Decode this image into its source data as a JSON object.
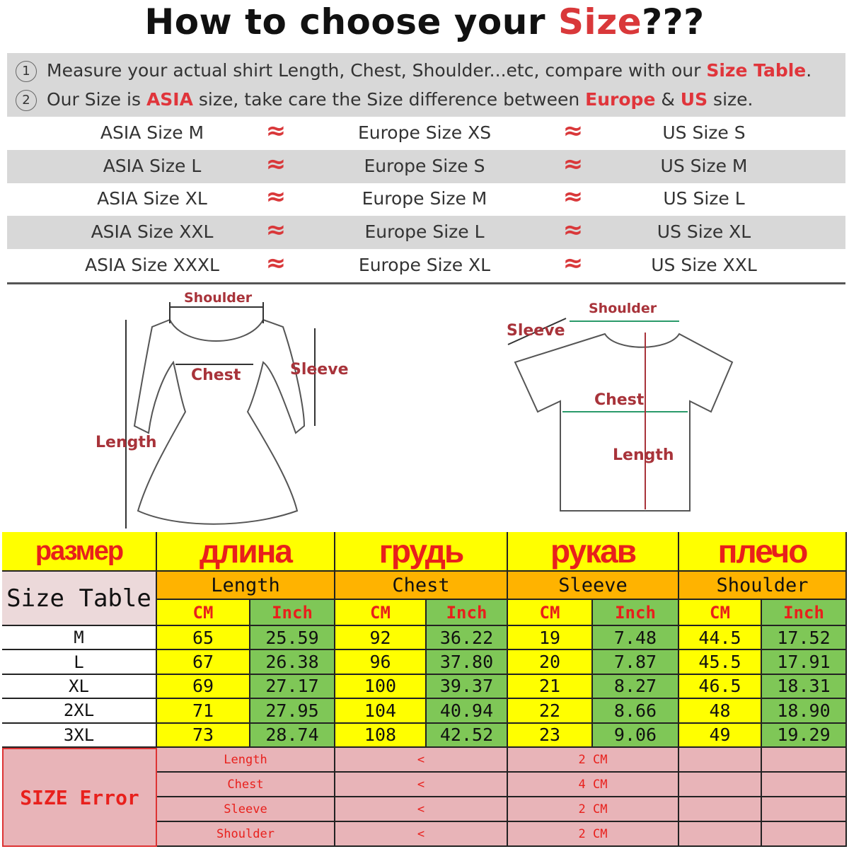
{
  "title": {
    "prefix": "How to choose your ",
    "highlight": "Size",
    "suffix": "???"
  },
  "notes": [
    {
      "num": "1",
      "parts": [
        [
          "Measure your actual shirt Length, Chest, Shoulder...etc, compare with our ",
          false
        ],
        [
          "Size Table",
          true
        ],
        [
          ".",
          false
        ]
      ]
    },
    {
      "num": "2",
      "parts": [
        [
          "Our Size is ",
          false
        ],
        [
          "ASIA",
          true
        ],
        [
          " size, take care the Size difference between ",
          false
        ],
        [
          "Europe",
          true
        ],
        [
          " & ",
          false
        ],
        [
          "US",
          true
        ],
        [
          " size.",
          false
        ]
      ]
    }
  ],
  "conversion": {
    "approx_symbol": "≈",
    "rows": [
      [
        "ASIA Size M",
        "Europe Size XS",
        "US Size S"
      ],
      [
        "ASIA Size L",
        "Europe Size S",
        "US Size M"
      ],
      [
        "ASIA Size XL",
        "Europe Size M",
        "US Size L"
      ],
      [
        "ASIA Size XXL",
        "Europe Size L",
        "US Size XL"
      ],
      [
        "ASIA Size XXXL",
        "Europe Size XL",
        "US Size XXL"
      ]
    ]
  },
  "diagrams": {
    "dress": {
      "shoulder": "Shoulder",
      "chest": "Chest",
      "sleeve": "Sleeve",
      "length": "Length"
    },
    "tshirt": {
      "shoulder": "Shoulder",
      "chest": "Chest",
      "sleeve": "Sleeve",
      "length": "Length"
    }
  },
  "size_table": {
    "russian_headers": [
      "размер",
      "длина",
      "грудь",
      "рукав",
      "плечо"
    ],
    "corner_label": "Size Table",
    "measures": [
      "Length",
      "Chest",
      "Sleeve",
      "Shoulder"
    ],
    "units": [
      "CM",
      "Inch"
    ],
    "rows": [
      {
        "size": "M",
        "values": [
          "65",
          "25.59",
          "92",
          "36.22",
          "19",
          "7.48",
          "44.5",
          "17.52"
        ]
      },
      {
        "size": "L",
        "values": [
          "67",
          "26.38",
          "96",
          "37.80",
          "20",
          "7.87",
          "45.5",
          "17.91"
        ]
      },
      {
        "size": "XL",
        "values": [
          "69",
          "27.17",
          "100",
          "39.37",
          "21",
          "8.27",
          "46.5",
          "18.31"
        ]
      },
      {
        "size": "2XL",
        "values": [
          "71",
          "27.95",
          "104",
          "40.94",
          "22",
          "8.66",
          "48",
          "18.90"
        ]
      },
      {
        "size": "3XL",
        "values": [
          "73",
          "28.74",
          "108",
          "42.52",
          "23",
          "9.06",
          "49",
          "19.29"
        ]
      }
    ],
    "error_label": "SIZE Error",
    "errors": [
      {
        "measure": "Length",
        "op": "<",
        "value": "2 CM"
      },
      {
        "measure": "Chest",
        "op": "<",
        "value": "4 CM"
      },
      {
        "measure": "Sleeve",
        "op": "<",
        "value": "2 CM"
      },
      {
        "measure": "Shoulder",
        "op": "<",
        "value": "2 CM"
      }
    ]
  },
  "colors": {
    "red": "#e8201c",
    "yellow": "#ffff00",
    "green": "#7fc757",
    "orange": "#ffb300",
    "pink": "#e8b4b8",
    "corner": "#ecd9da"
  }
}
